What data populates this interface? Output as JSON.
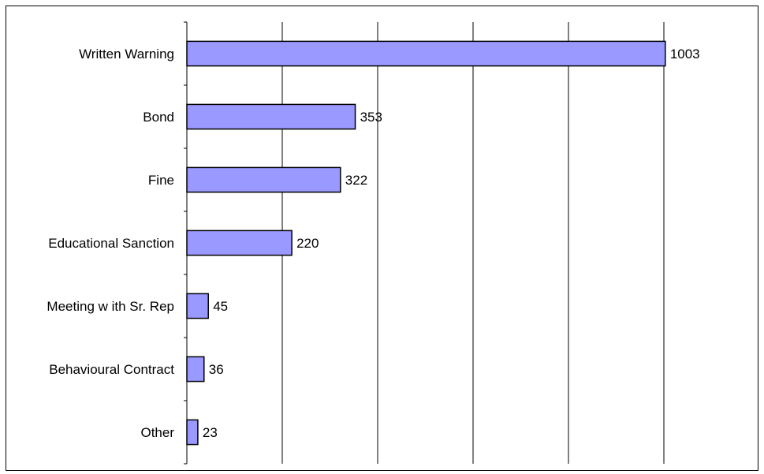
{
  "colors": {
    "bar_fill": "#9999ff",
    "bar_stroke": "#000000",
    "grid": "#000000",
    "background": "#ffffff"
  },
  "chart_data": {
    "type": "bar",
    "orientation": "horizontal",
    "categories": [
      "Written Warning",
      "Bond",
      "Fine",
      "Educational Sanction",
      "Meeting w ith Sr. Rep",
      "Behavioural Contract",
      "Other"
    ],
    "values": [
      1003,
      353,
      322,
      220,
      45,
      36,
      23
    ],
    "data_labels": [
      "1003",
      "353",
      "322",
      "220",
      "45",
      "36",
      "23"
    ],
    "title": "",
    "xlabel": "",
    "ylabel": "",
    "xlim": [
      0,
      1200
    ],
    "x_grid_step": 200,
    "grid": true,
    "x_tick_labels_shown": false,
    "legend": "none"
  }
}
